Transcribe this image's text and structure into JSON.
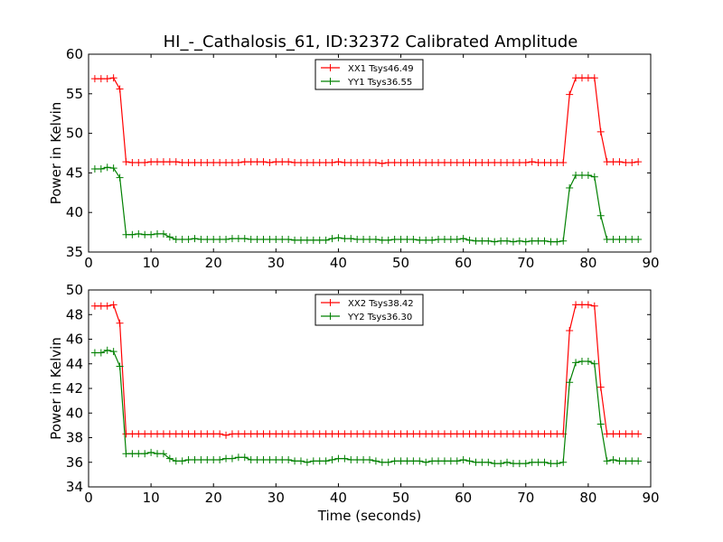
{
  "title": "HI_-_Cathalosis_61, ID:32372 Calibrated Amplitude",
  "chart_data": [
    {
      "type": "line",
      "xlabel": "",
      "ylabel": "Power in Kelvin",
      "xlim": [
        0,
        90
      ],
      "ylim": [
        35,
        60
      ],
      "xticks": [
        0,
        10,
        20,
        30,
        40,
        50,
        60,
        70,
        80,
        90
      ],
      "yticks": [
        35,
        40,
        45,
        50,
        55,
        60
      ],
      "legend_position": "top-center",
      "grid": false,
      "x": [
        1,
        2,
        3,
        4,
        5,
        6,
        7,
        8,
        9,
        10,
        11,
        12,
        13,
        14,
        15,
        16,
        17,
        18,
        19,
        20,
        21,
        22,
        23,
        24,
        25,
        26,
        27,
        28,
        29,
        30,
        31,
        32,
        33,
        34,
        35,
        36,
        37,
        38,
        39,
        40,
        41,
        42,
        43,
        44,
        45,
        46,
        47,
        48,
        49,
        50,
        51,
        52,
        53,
        54,
        55,
        56,
        57,
        58,
        59,
        60,
        61,
        62,
        63,
        64,
        65,
        66,
        67,
        68,
        69,
        70,
        71,
        72,
        73,
        74,
        75,
        76,
        77,
        78,
        79,
        80,
        81,
        82,
        83,
        84,
        85,
        86,
        87,
        88
      ],
      "series": [
        {
          "name": "XX1 Tsys46.49",
          "color": "#ff0000",
          "values": [
            56.9,
            56.9,
            56.9,
            57.0,
            55.6,
            46.4,
            46.3,
            46.3,
            46.3,
            46.4,
            46.4,
            46.4,
            46.4,
            46.4,
            46.3,
            46.3,
            46.3,
            46.3,
            46.3,
            46.3,
            46.3,
            46.3,
            46.3,
            46.3,
            46.4,
            46.4,
            46.4,
            46.4,
            46.3,
            46.4,
            46.4,
            46.4,
            46.3,
            46.3,
            46.3,
            46.3,
            46.3,
            46.3,
            46.3,
            46.4,
            46.3,
            46.3,
            46.3,
            46.3,
            46.3,
            46.3,
            46.2,
            46.3,
            46.3,
            46.3,
            46.3,
            46.3,
            46.3,
            46.3,
            46.3,
            46.3,
            46.3,
            46.3,
            46.3,
            46.3,
            46.3,
            46.3,
            46.3,
            46.3,
            46.3,
            46.3,
            46.3,
            46.3,
            46.3,
            46.3,
            46.4,
            46.3,
            46.3,
            46.3,
            46.3,
            46.3,
            54.9,
            57.0,
            57.0,
            57.0,
            57.0,
            50.2,
            46.4,
            46.4,
            46.4,
            46.3,
            46.3,
            46.4
          ]
        },
        {
          "name": "YY1 Tsys36.55",
          "color": "#008000",
          "values": [
            45.5,
            45.5,
            45.7,
            45.6,
            44.4,
            37.2,
            37.2,
            37.3,
            37.2,
            37.2,
            37.3,
            37.3,
            36.9,
            36.6,
            36.6,
            36.6,
            36.7,
            36.6,
            36.6,
            36.6,
            36.6,
            36.6,
            36.7,
            36.7,
            36.7,
            36.6,
            36.6,
            36.6,
            36.6,
            36.6,
            36.6,
            36.6,
            36.5,
            36.5,
            36.5,
            36.5,
            36.5,
            36.5,
            36.7,
            36.8,
            36.7,
            36.7,
            36.6,
            36.6,
            36.6,
            36.6,
            36.5,
            36.5,
            36.6,
            36.6,
            36.6,
            36.6,
            36.5,
            36.5,
            36.5,
            36.6,
            36.6,
            36.6,
            36.6,
            36.7,
            36.5,
            36.4,
            36.4,
            36.4,
            36.3,
            36.4,
            36.4,
            36.3,
            36.4,
            36.3,
            36.4,
            36.4,
            36.4,
            36.3,
            36.3,
            36.4,
            43.1,
            44.7,
            44.7,
            44.7,
            44.5,
            39.6,
            36.6,
            36.6,
            36.6,
            36.6,
            36.6,
            36.6
          ]
        }
      ]
    },
    {
      "type": "line",
      "xlabel": "Time (seconds)",
      "ylabel": "Power in Kelvin",
      "xlim": [
        0,
        90
      ],
      "ylim": [
        34,
        50
      ],
      "xticks": [
        0,
        10,
        20,
        30,
        40,
        50,
        60,
        70,
        80,
        90
      ],
      "yticks": [
        34,
        36,
        38,
        40,
        42,
        44,
        46,
        48,
        50
      ],
      "legend_position": "top-center",
      "grid": false,
      "x": [
        1,
        2,
        3,
        4,
        5,
        6,
        7,
        8,
        9,
        10,
        11,
        12,
        13,
        14,
        15,
        16,
        17,
        18,
        19,
        20,
        21,
        22,
        23,
        24,
        25,
        26,
        27,
        28,
        29,
        30,
        31,
        32,
        33,
        34,
        35,
        36,
        37,
        38,
        39,
        40,
        41,
        42,
        43,
        44,
        45,
        46,
        47,
        48,
        49,
        50,
        51,
        52,
        53,
        54,
        55,
        56,
        57,
        58,
        59,
        60,
        61,
        62,
        63,
        64,
        65,
        66,
        67,
        68,
        69,
        70,
        71,
        72,
        73,
        74,
        75,
        76,
        77,
        78,
        79,
        80,
        81,
        82,
        83,
        84,
        85,
        86,
        87,
        88
      ],
      "series": [
        {
          "name": "XX2 Tsys38.42",
          "color": "#ff0000",
          "values": [
            48.7,
            48.7,
            48.7,
            48.8,
            47.3,
            38.3,
            38.3,
            38.3,
            38.3,
            38.3,
            38.3,
            38.3,
            38.3,
            38.3,
            38.3,
            38.3,
            38.3,
            38.3,
            38.3,
            38.3,
            38.3,
            38.2,
            38.3,
            38.3,
            38.3,
            38.3,
            38.3,
            38.3,
            38.3,
            38.3,
            38.3,
            38.3,
            38.3,
            38.3,
            38.3,
            38.3,
            38.3,
            38.3,
            38.3,
            38.3,
            38.3,
            38.3,
            38.3,
            38.3,
            38.3,
            38.3,
            38.3,
            38.3,
            38.3,
            38.3,
            38.3,
            38.3,
            38.3,
            38.3,
            38.3,
            38.3,
            38.3,
            38.3,
            38.3,
            38.3,
            38.3,
            38.3,
            38.3,
            38.3,
            38.3,
            38.3,
            38.3,
            38.3,
            38.3,
            38.3,
            38.3,
            38.3,
            38.3,
            38.3,
            38.3,
            38.3,
            46.7,
            48.8,
            48.8,
            48.8,
            48.7,
            42.1,
            38.3,
            38.3,
            38.3,
            38.3,
            38.3,
            38.3
          ]
        },
        {
          "name": "YY2 Tsys36.30",
          "color": "#008000",
          "values": [
            44.9,
            44.9,
            45.1,
            45.0,
            43.8,
            36.7,
            36.7,
            36.7,
            36.7,
            36.8,
            36.7,
            36.7,
            36.3,
            36.1,
            36.1,
            36.2,
            36.2,
            36.2,
            36.2,
            36.2,
            36.2,
            36.3,
            36.3,
            36.4,
            36.4,
            36.2,
            36.2,
            36.2,
            36.2,
            36.2,
            36.2,
            36.2,
            36.1,
            36.1,
            36.0,
            36.1,
            36.1,
            36.1,
            36.2,
            36.3,
            36.3,
            36.2,
            36.2,
            36.2,
            36.2,
            36.1,
            36.0,
            36.0,
            36.1,
            36.1,
            36.1,
            36.1,
            36.1,
            36.0,
            36.1,
            36.1,
            36.1,
            36.1,
            36.1,
            36.2,
            36.1,
            36.0,
            36.0,
            36.0,
            35.9,
            35.9,
            36.0,
            35.9,
            35.9,
            35.9,
            36.0,
            36.0,
            36.0,
            35.9,
            35.9,
            36.0,
            42.5,
            44.1,
            44.2,
            44.2,
            44.0,
            39.1,
            36.1,
            36.2,
            36.1,
            36.1,
            36.1,
            36.1
          ]
        }
      ]
    }
  ]
}
